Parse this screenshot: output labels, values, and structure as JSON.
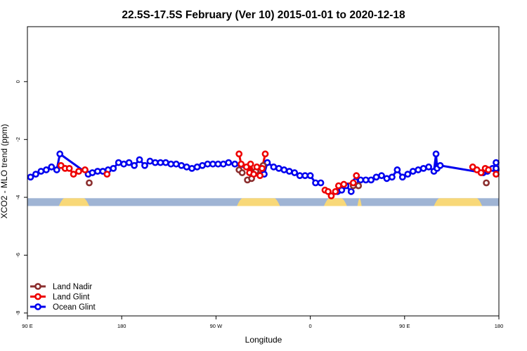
{
  "chart_data": {
    "type": "line",
    "title": "22.5S-17.5S February (Ver 10)   2015-01-01 to 2020-12-18",
    "xlabel": "Longitude",
    "ylabel": "XCO2 - MLO trend (ppm)",
    "xlim": [
      90,
      540
    ],
    "ylim": [
      -8.1,
      1.9
    ],
    "x_ticks": [
      {
        "value": 90,
        "label": "90 E"
      },
      {
        "value": 180,
        "label": "180"
      },
      {
        "value": 270,
        "label": "90 W"
      },
      {
        "value": 360,
        "label": "0"
      },
      {
        "value": 450,
        "label": "90 E"
      },
      {
        "value": 540,
        "label": "180"
      }
    ],
    "y_ticks": [
      {
        "value": 0,
        "label": "0"
      },
      {
        "value": -2,
        "label": "-2"
      },
      {
        "value": -4,
        "label": "-4"
      },
      {
        "value": -6,
        "label": "-6"
      },
      {
        "value": -8,
        "label": "-8"
      }
    ],
    "legend_position": "bottom-left",
    "surface_band": {
      "y_range": [
        -4.3,
        -4.03
      ],
      "ocean_color": "#9fb4d4",
      "land_color": "#f8d878",
      "land_segments": [
        [
          120,
          149
        ],
        [
          290,
          331
        ],
        [
          373,
          395
        ],
        [
          405,
          409
        ],
        [
          478,
          524
        ]
      ]
    },
    "series": [
      {
        "name": "Land Nadir",
        "color": "#8b2f2f",
        "segments": [
          [
            [
              149,
              -3.5
            ]
          ],
          [
            [
              292,
              -3.05
            ],
            [
              295,
              -3.15
            ]
          ],
          [
            [
              300,
              -3.4
            ],
            [
              304,
              -3.35
            ],
            [
              308,
              -3.1
            ],
            [
              315,
              -2.9
            ]
          ],
          [
            [
              401,
              -3.6
            ],
            [
              406,
              -3.6
            ]
          ],
          [
            [
              528,
              -3.5
            ]
          ]
        ]
      },
      {
        "name": "Land Glint",
        "color": "#ee0000",
        "segments": [
          [
            [
              122,
              -2.9
            ],
            [
              126,
              -3.0
            ],
            [
              130,
              -3.0
            ],
            [
              134,
              -3.2
            ],
            [
              139,
              -3.1
            ],
            [
              145,
              -3.05
            ]
          ],
          [
            [
              166,
              -3.2
            ]
          ],
          [
            [
              292,
              -2.5
            ],
            [
              294,
              -2.85
            ],
            [
              299,
              -2.95
            ],
            [
              302,
              -3.15
            ],
            [
              303,
              -2.85
            ],
            [
              306,
              -3.2
            ],
            [
              309,
              -2.95
            ],
            [
              312,
              -3.25
            ],
            [
              314,
              -3.0
            ],
            [
              317,
              -2.5
            ]
          ],
          [
            [
              374,
              -3.75
            ],
            [
              377,
              -3.8
            ],
            [
              380,
              -3.95
            ],
            [
              384,
              -3.8
            ],
            [
              387,
              -3.6
            ],
            [
              392,
              -3.55
            ],
            [
              401,
              -3.5
            ],
            [
              404,
              -3.25
            ]
          ],
          [
            [
              515,
              -2.95
            ],
            [
              519,
              -3.05
            ],
            [
              523,
              -3.15
            ],
            [
              527,
              -3.0
            ],
            [
              530,
              -3.05
            ]
          ],
          [
            [
              540,
              -3.2
            ]
          ]
        ]
      },
      {
        "name": "Ocean Glint",
        "color": "#0000ee",
        "segments": [
          [
            [
              93,
              -3.3
            ],
            [
              98,
              -3.2
            ],
            [
              103,
              -3.1
            ],
            [
              108,
              -3.05
            ],
            [
              113,
              -2.95
            ],
            [
              118,
              -3.05
            ],
            [
              121,
              -2.5
            ],
            [
              148,
              -3.2
            ],
            [
              152,
              -3.15
            ],
            [
              157,
              -3.1
            ],
            [
              162,
              -3.1
            ],
            [
              167,
              -3.05
            ],
            [
              172,
              -3.0
            ],
            [
              177,
              -2.8
            ],
            [
              182,
              -2.85
            ],
            [
              187,
              -2.8
            ],
            [
              192,
              -2.9
            ],
            [
              197,
              -2.7
            ],
            [
              202,
              -2.9
            ],
            [
              207,
              -2.75
            ],
            [
              212,
              -2.8
            ],
            [
              217,
              -2.8
            ],
            [
              222,
              -2.8
            ],
            [
              227,
              -2.85
            ],
            [
              232,
              -2.85
            ],
            [
              237,
              -2.9
            ],
            [
              242,
              -2.95
            ],
            [
              247,
              -3.0
            ],
            [
              252,
              -2.95
            ],
            [
              257,
              -2.9
            ],
            [
              262,
              -2.85
            ],
            [
              267,
              -2.85
            ],
            [
              272,
              -2.85
            ],
            [
              277,
              -2.85
            ],
            [
              282,
              -2.8
            ],
            [
              288,
              -2.85
            ],
            [
              316,
              -3.2
            ],
            [
              319,
              -2.8
            ],
            [
              325,
              -2.95
            ],
            [
              330,
              -3.0
            ],
            [
              335,
              -3.05
            ],
            [
              340,
              -3.1
            ],
            [
              345,
              -3.15
            ],
            [
              350,
              -3.25
            ],
            [
              355,
              -3.25
            ],
            [
              360,
              -3.25
            ],
            [
              365,
              -3.5
            ],
            [
              370,
              -3.5
            ]
          ],
          [
            [
              386,
              -3.8
            ],
            [
              390,
              -3.75
            ],
            [
              394,
              -3.6
            ],
            [
              399,
              -3.8
            ],
            [
              403,
              -3.45
            ],
            [
              408,
              -3.4
            ],
            [
              413,
              -3.4
            ],
            [
              418,
              -3.4
            ],
            [
              423,
              -3.3
            ],
            [
              428,
              -3.25
            ],
            [
              433,
              -3.35
            ],
            [
              438,
              -3.3
            ],
            [
              443,
              -3.05
            ],
            [
              448,
              -3.3
            ],
            [
              453,
              -3.2
            ],
            [
              458,
              -3.1
            ],
            [
              463,
              -3.05
            ],
            [
              468,
              -3.0
            ],
            [
              473,
              -2.95
            ],
            [
              478,
              -3.1
            ],
            [
              480,
              -2.5
            ],
            [
              481,
              -3.0
            ],
            [
              484,
              -2.9
            ],
            [
              525,
              -3.15
            ],
            [
              529,
              -3.1
            ],
            [
              534,
              -3.0
            ],
            [
              539,
              -3.05
            ],
            [
              544,
              -3.05
            ],
            [
              549,
              -3.0
            ],
            [
              554,
              -2.8
            ]
          ]
        ]
      }
    ]
  }
}
